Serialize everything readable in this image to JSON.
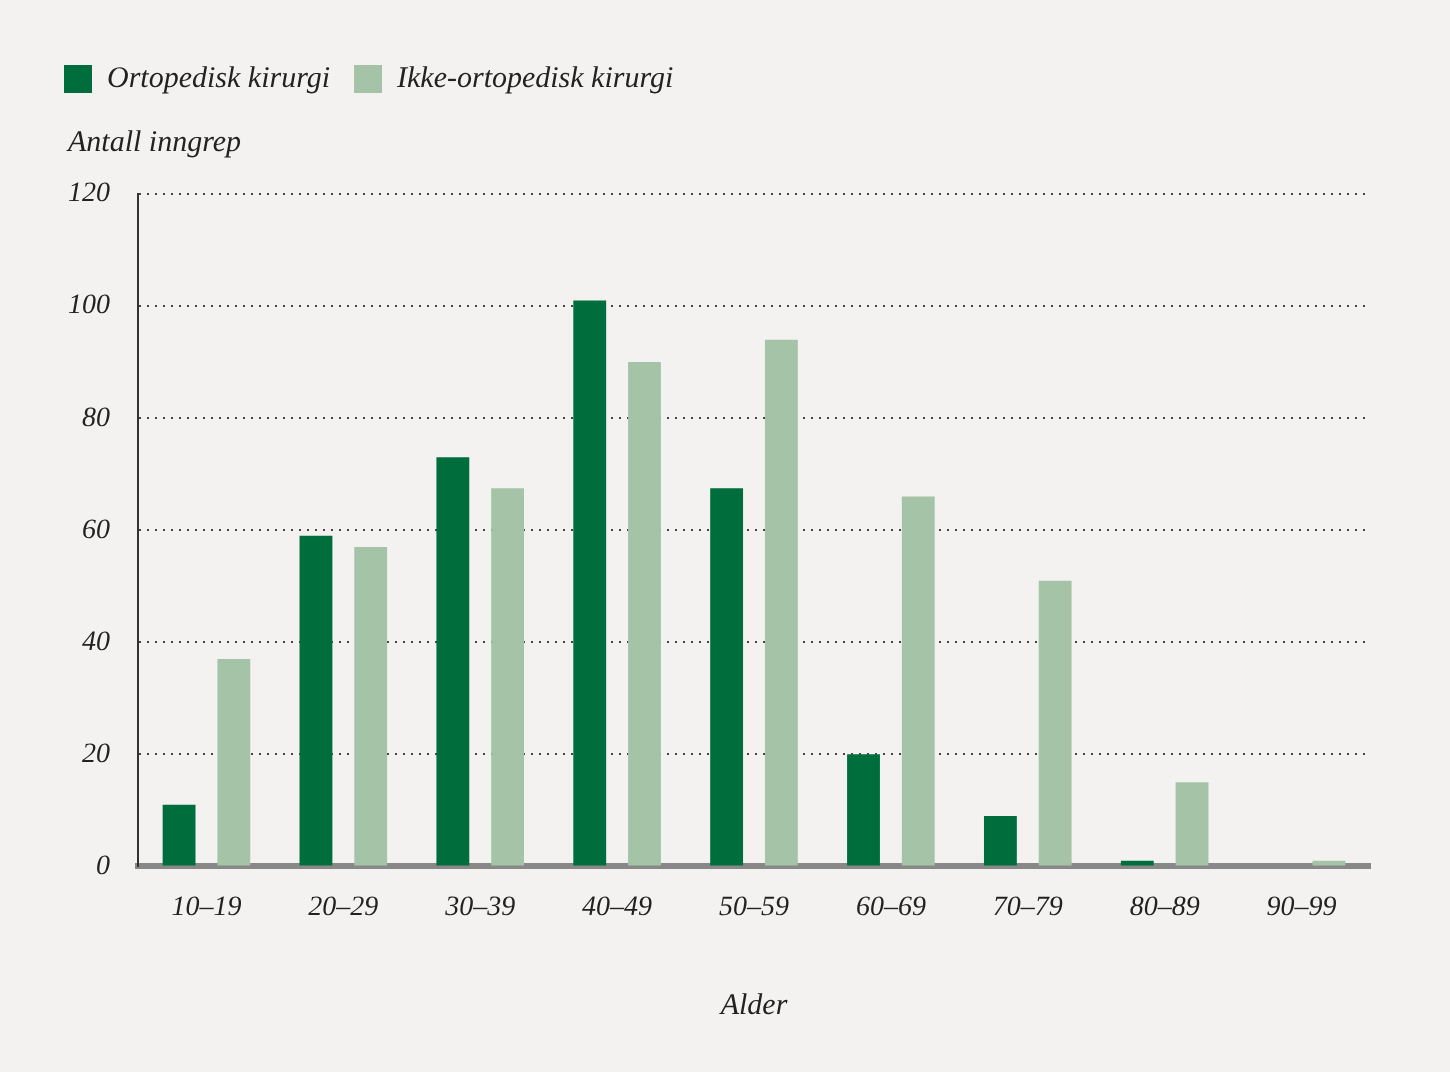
{
  "chart_data": {
    "type": "bar",
    "xlabel": "Alder",
    "ylabel": "Antall inngrep",
    "categories": [
      "10–19",
      "20–29",
      "30–39",
      "40–49",
      "50–59",
      "60–69",
      "70–79",
      "80–89",
      "90–99"
    ],
    "series": [
      {
        "name": "Ortopedisk kirurgi",
        "color": "#006d3c",
        "values": [
          11,
          59,
          73,
          101,
          67.5,
          20,
          9,
          1,
          0
        ]
      },
      {
        "name": "Ikke-ortopedisk kirurgi",
        "color": "#a5c3a6",
        "values": [
          37,
          57,
          67.5,
          90,
          94,
          66,
          51,
          15,
          1
        ]
      }
    ],
    "ylim": [
      0,
      120
    ],
    "yticks": [
      0,
      20,
      40,
      60,
      80,
      100,
      120
    ],
    "grid": "y",
    "legend": "top left"
  }
}
